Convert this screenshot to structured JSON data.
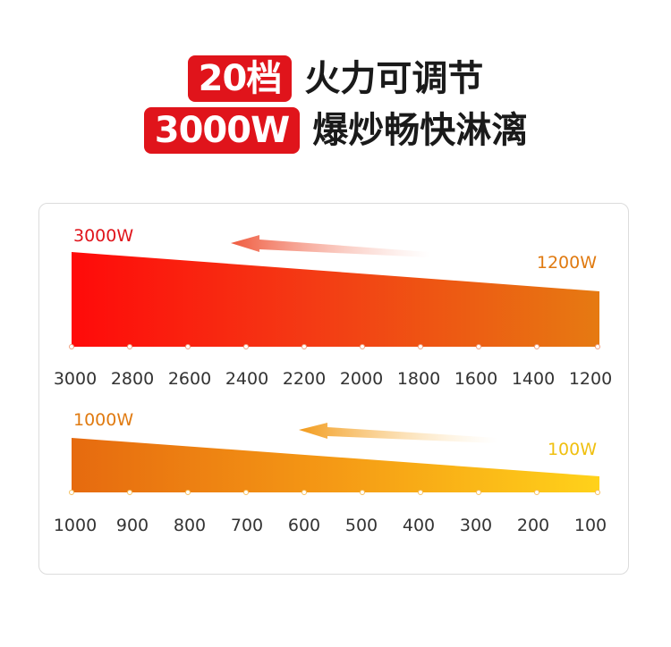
{
  "headline": {
    "line1_badge": "20档",
    "line1_text": "火力可调节",
    "line2_badge": "3000W",
    "line2_text": "爆炒畅快淋漓"
  },
  "panels": [
    {
      "max_label": "3000W",
      "min_label": "1200W",
      "ticks": [
        "3000",
        "2800",
        "2600",
        "2400",
        "2200",
        "2000",
        "1800",
        "1600",
        "1400",
        "1200"
      ]
    },
    {
      "max_label": "1000W",
      "min_label": "100W",
      "ticks": [
        "1000",
        "900",
        "800",
        "700",
        "600",
        "500",
        "400",
        "300",
        "200",
        "100"
      ]
    }
  ],
  "colors": {
    "badge_red": "#e0141b",
    "panel1_start": "#ff0a0a",
    "panel1_end": "#e67a12",
    "panel2_start": "#e66a0f",
    "panel2_end": "#ffd21a",
    "arrow1": "#f26a4f",
    "arrow2": "#f5a623"
  }
}
